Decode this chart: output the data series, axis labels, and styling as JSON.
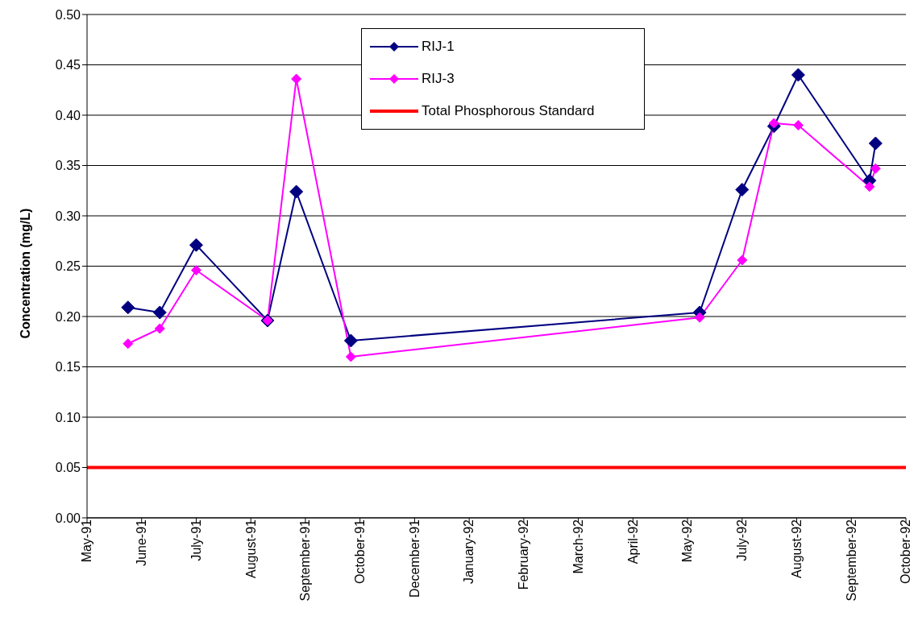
{
  "chart_data": {
    "type": "line",
    "ylabel": "Concentration (mg/L)",
    "x": [
      "1991-05-28",
      "1991-06-18",
      "1991-07-12",
      "1991-08-28",
      "1991-09-16",
      "1991-10-22",
      "1992-06-08",
      "1992-07-06",
      "1992-07-27",
      "1992-08-12",
      "1992-09-28",
      "1992-10-02"
    ],
    "series": [
      {
        "name": "RIJ-1",
        "color": "#000080",
        "values": [
          0.209,
          0.204,
          0.271,
          0.196,
          0.324,
          0.176,
          0.204,
          0.326,
          0.389,
          0.44,
          0.335,
          0.372
        ]
      },
      {
        "name": "RIJ-3",
        "color": "#ff00ff",
        "values": [
          0.173,
          0.188,
          0.246,
          0.196,
          0.436,
          0.16,
          0.199,
          0.256,
          0.392,
          0.39,
          0.329,
          0.347
        ]
      }
    ],
    "ref_lines": [
      {
        "axis": "y",
        "value": 0.05,
        "label": "Total Phosphorous Standard",
        "color": "#ff0000",
        "line_style": "solid"
      }
    ],
    "xlim": [
      "1991-05-01",
      "1992-10-22"
    ],
    "xticks": [
      {
        "value": "1991-05-01",
        "label": "May-91"
      },
      {
        "value": "1991-06-06",
        "label": "June-91"
      },
      {
        "value": "1991-07-12",
        "label": "July-91"
      },
      {
        "value": "1991-08-17",
        "label": "August-91"
      },
      {
        "value": "1991-09-22",
        "label": "September-91"
      },
      {
        "value": "1991-10-28",
        "label": "October-91"
      },
      {
        "value": "1991-12-03",
        "label": "December-91"
      },
      {
        "value": "1992-01-08",
        "label": "January-92"
      },
      {
        "value": "1992-02-13",
        "label": "February-92"
      },
      {
        "value": "1992-03-20",
        "label": "March-92"
      },
      {
        "value": "1992-04-25",
        "label": "April-92"
      },
      {
        "value": "1992-05-31",
        "label": "May-92"
      },
      {
        "value": "1992-07-06",
        "label": "July-92"
      },
      {
        "value": "1992-08-11",
        "label": "August-92"
      },
      {
        "value": "1992-09-16",
        "label": "September-92"
      },
      {
        "value": "1992-10-22",
        "label": "October-92"
      }
    ],
    "ylim": [
      0,
      0.5
    ],
    "yticks": [
      {
        "value": 0,
        "label": "0.00"
      },
      {
        "value": 0.05,
        "label": "0.05"
      },
      {
        "value": 0.1,
        "label": "0.10"
      },
      {
        "value": 0.15,
        "label": "0.15"
      },
      {
        "value": 0.2,
        "label": "0.20"
      },
      {
        "value": 0.25,
        "label": "0.25"
      },
      {
        "value": 0.3,
        "label": "0.30"
      },
      {
        "value": 0.35,
        "label": "0.35"
      },
      {
        "value": 0.4,
        "label": "0.40"
      },
      {
        "value": 0.45,
        "label": "0.45"
      },
      {
        "value": 0.5,
        "label": "0.50"
      }
    ],
    "grid": "y",
    "legend": "top",
    "marker": "diamond",
    "line_style": "solid"
  }
}
